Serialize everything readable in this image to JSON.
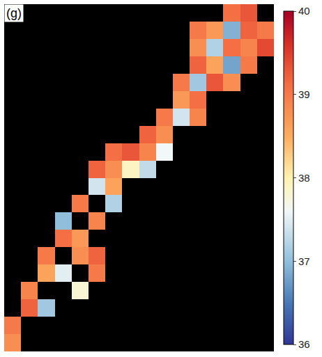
{
  "chart_data": {
    "type": "heatmap",
    "panel_label": "(g)",
    "tick_labels": false,
    "grid": false,
    "cells": [
      [
        null,
        null,
        null,
        null,
        null,
        null,
        null,
        null,
        null,
        null,
        null,
        null,
        null,
        39.1,
        39.3,
        null
      ],
      [
        null,
        null,
        null,
        null,
        null,
        null,
        null,
        null,
        null,
        null,
        null,
        39.0,
        38.7,
        36.9,
        39.2,
        39.0
      ],
      [
        null,
        null,
        null,
        null,
        null,
        null,
        null,
        null,
        null,
        null,
        null,
        38.8,
        37.2,
        39.1,
        38.9,
        39.4
      ],
      [
        null,
        null,
        null,
        null,
        null,
        null,
        null,
        null,
        null,
        null,
        null,
        39.2,
        38.6,
        36.8,
        39.0,
        null
      ],
      [
        null,
        null,
        null,
        null,
        null,
        null,
        null,
        null,
        null,
        null,
        39.0,
        37.1,
        39.3,
        38.8,
        null,
        null
      ],
      [
        null,
        null,
        null,
        null,
        null,
        null,
        null,
        null,
        null,
        null,
        38.7,
        39.1,
        null,
        null,
        null,
        null
      ],
      [
        null,
        null,
        null,
        null,
        null,
        null,
        null,
        null,
        null,
        39.0,
        37.4,
        38.9,
        null,
        null,
        null,
        null
      ],
      [
        null,
        null,
        null,
        null,
        null,
        null,
        null,
        null,
        39.2,
        38.8,
        null,
        null,
        null,
        null,
        null,
        null
      ],
      [
        null,
        null,
        null,
        null,
        null,
        null,
        39.1,
        39.3,
        38.9,
        37.6,
        null,
        null,
        null,
        null,
        null,
        null
      ],
      [
        null,
        null,
        null,
        null,
        null,
        39.2,
        38.8,
        37.9,
        37.3,
        null,
        null,
        null,
        null,
        null,
        null,
        null
      ],
      [
        null,
        null,
        null,
        null,
        null,
        37.4,
        38.6,
        null,
        null,
        null,
        null,
        null,
        null,
        null,
        null,
        null
      ],
      [
        null,
        null,
        null,
        null,
        39.0,
        null,
        37.2,
        null,
        null,
        null,
        null,
        null,
        null,
        null,
        null,
        null
      ],
      [
        null,
        null,
        null,
        37.0,
        null,
        38.9,
        null,
        null,
        null,
        null,
        null,
        null,
        null,
        null,
        null,
        null
      ],
      [
        null,
        null,
        null,
        39.1,
        38.7,
        null,
        null,
        null,
        null,
        null,
        null,
        null,
        null,
        null,
        null,
        null
      ],
      [
        null,
        null,
        39.0,
        null,
        38.8,
        39.2,
        null,
        null,
        null,
        null,
        null,
        null,
        null,
        null,
        null,
        null
      ],
      [
        null,
        null,
        38.6,
        37.5,
        null,
        39.0,
        null,
        null,
        null,
        null,
        null,
        null,
        null,
        null,
        null,
        null
      ],
      [
        null,
        38.9,
        null,
        null,
        37.8,
        null,
        null,
        null,
        null,
        null,
        null,
        null,
        null,
        null,
        null,
        null
      ],
      [
        null,
        39.2,
        37.1,
        null,
        null,
        null,
        null,
        null,
        null,
        null,
        null,
        null,
        null,
        null,
        null,
        null
      ],
      [
        39.0,
        null,
        null,
        null,
        null,
        null,
        null,
        null,
        null,
        null,
        null,
        null,
        null,
        null,
        null,
        null
      ],
      [
        38.8,
        null,
        null,
        null,
        null,
        null,
        null,
        null,
        null,
        null,
        null,
        null,
        null,
        null,
        null,
        null
      ]
    ],
    "colorbar": {
      "range": [
        36,
        40
      ],
      "ticks": [
        36,
        37,
        38,
        39,
        40
      ]
    }
  }
}
